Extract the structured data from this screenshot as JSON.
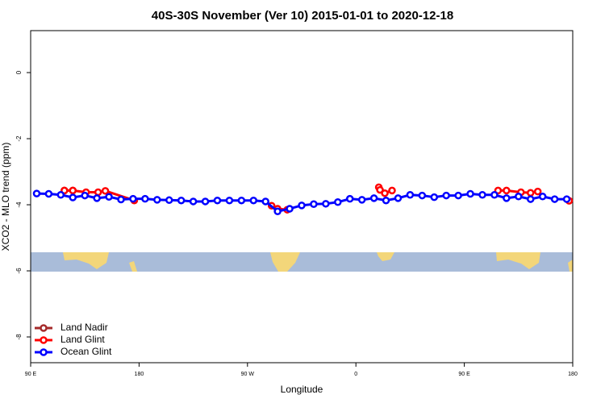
{
  "chart_data": {
    "type": "line",
    "title": "40S-30S November (Ver 10)   2015-01-01 to 2020-12-18",
    "x_label": "Longitude",
    "y_label": "XCO2 - MLO trend (ppm)",
    "xlim": [
      90,
      540
    ],
    "ylim": [
      -8.78,
      1.27
    ],
    "xticks": [
      {
        "value": 90,
        "label": "90 E"
      },
      180,
      {
        "value": 270,
        "label": "90 W"
      },
      {
        "value": 360,
        "label": "0"
      },
      {
        "value": 450,
        "label": "90 E"
      },
      {
        "value": 540,
        "label": "180"
      }
    ],
    "yticks": [
      0,
      -2,
      -4,
      -6,
      -8
    ],
    "legend": "bottom-left",
    "series": [
      {
        "name": "Land Nadir",
        "color": "#a52a2a",
        "x": [
          118,
          125
        ],
        "values": [
          -3.57,
          -3.57
        ]
      },
      {
        "name": "Land Glint",
        "color": "#ff0000",
        "x": [
          118,
          125,
          136,
          146,
          152,
          176,
          230,
          290,
          295,
          303,
          340,
          379,
          380,
          384,
          390,
          440,
          478,
          485,
          497,
          505,
          511,
          530,
          537
        ],
        "values": [
          -3.57,
          -3.57,
          -3.62,
          -3.62,
          -3.58,
          -3.87,
          null,
          -4.03,
          -4.12,
          -4.15,
          null,
          -3.47,
          -3.55,
          -3.65,
          -3.57,
          null,
          -3.57,
          -3.57,
          -3.62,
          -3.64,
          -3.6,
          null,
          -3.88
        ]
      },
      {
        "name": "Ocean Glint",
        "color": "#0000ff",
        "x": [
          95,
          105,
          115,
          125,
          135,
          145,
          155,
          165,
          175,
          185,
          195,
          205,
          215,
          225,
          235,
          245,
          255,
          265,
          275,
          285,
          295,
          305,
          315,
          325,
          335,
          345,
          355,
          365,
          375,
          385,
          395,
          405,
          415,
          425,
          435,
          445,
          455,
          465,
          475,
          485,
          495,
          505,
          515,
          525,
          535
        ],
        "values": [
          -3.66,
          -3.67,
          -3.7,
          -3.78,
          -3.72,
          -3.8,
          -3.76,
          -3.84,
          -3.82,
          -3.82,
          -3.85,
          -3.86,
          -3.87,
          -3.9,
          -3.9,
          -3.87,
          -3.87,
          -3.87,
          -3.87,
          -3.9,
          -4.2,
          -4.12,
          -4.02,
          -3.98,
          -3.97,
          -3.92,
          -3.82,
          -3.85,
          -3.8,
          -3.87,
          -3.8,
          -3.7,
          -3.72,
          -3.77,
          -3.72,
          -3.72,
          -3.67,
          -3.7,
          -3.7,
          -3.8,
          -3.75,
          -3.83,
          -3.75,
          -3.83,
          -3.83
        ]
      }
    ]
  }
}
